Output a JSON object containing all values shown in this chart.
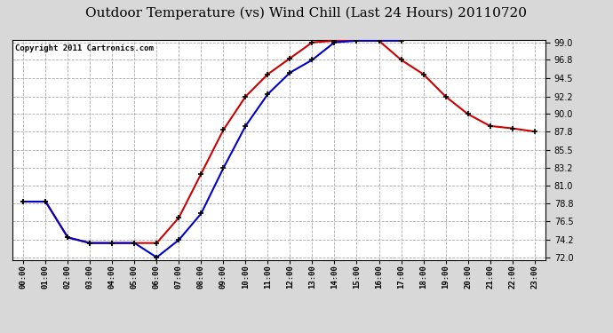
{
  "title": "Outdoor Temperature (vs) Wind Chill (Last 24 Hours) 20110720",
  "copyright": "Copyright 2011 Cartronics.com",
  "x_labels": [
    "00:00",
    "01:00",
    "02:00",
    "03:00",
    "04:00",
    "05:00",
    "06:00",
    "07:00",
    "08:00",
    "09:00",
    "10:00",
    "11:00",
    "12:00",
    "13:00",
    "14:00",
    "15:00",
    "16:00",
    "17:00",
    "18:00",
    "19:00",
    "20:00",
    "21:00",
    "22:00",
    "23:00"
  ],
  "temp_red": [
    79.0,
    79.0,
    74.5,
    73.8,
    73.8,
    73.8,
    73.8,
    77.0,
    82.5,
    88.0,
    92.2,
    95.0,
    97.0,
    99.0,
    99.2,
    99.2,
    99.2,
    96.8,
    95.0,
    92.2,
    90.0,
    88.5,
    88.2,
    87.8
  ],
  "wind_blue": [
    79.0,
    79.0,
    74.5,
    73.8,
    73.8,
    73.8,
    72.0,
    74.2,
    77.5,
    83.2,
    88.5,
    92.5,
    95.2,
    96.8,
    99.0,
    99.2,
    99.2,
    99.2,
    null,
    null,
    null,
    null,
    null,
    null
  ],
  "ylim_min": 72.0,
  "ylim_max": 99.0,
  "yticks": [
    72.0,
    74.2,
    76.5,
    78.8,
    81.0,
    83.2,
    85.5,
    87.8,
    90.0,
    92.2,
    94.5,
    96.8,
    99.0
  ],
  "bg_color": "#d8d8d8",
  "plot_bg": "#ffffff",
  "red_color": "#cc0000",
  "blue_color": "#0000cc",
  "grid_color": "#aaaaaa",
  "title_fontsize": 11,
  "copyright_fontsize": 6.5
}
